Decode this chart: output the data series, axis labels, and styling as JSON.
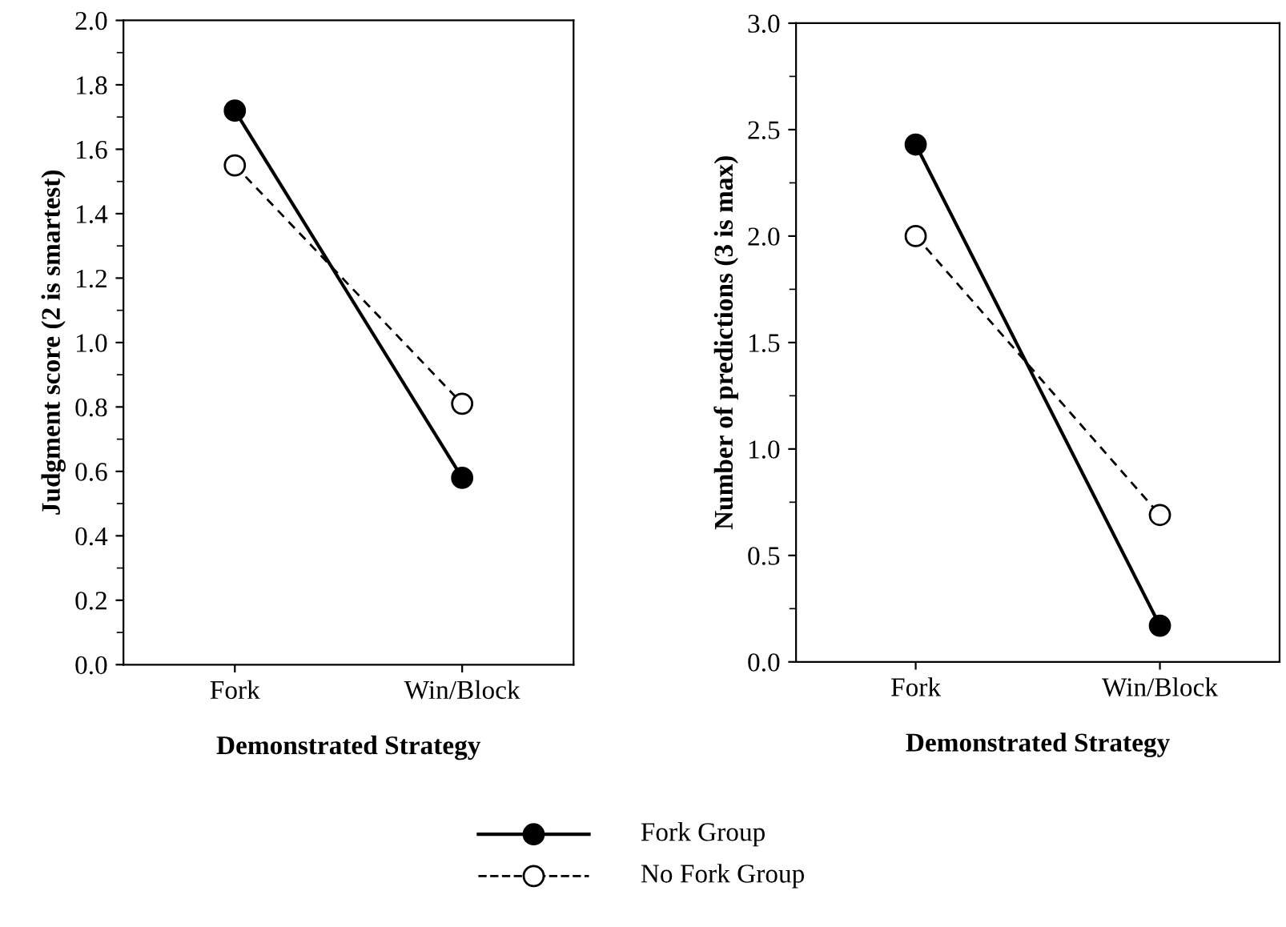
{
  "chart_data": [
    {
      "type": "line",
      "categories": [
        "Fork",
        "Win/Block"
      ],
      "xlabel": "Demonstrated Strategy",
      "ylabel": "Judgment score (2 is smartest)",
      "ylim": [
        0,
        2.0
      ],
      "yticks": [
        {
          "value": 0,
          "label": "0.0"
        },
        0.2,
        0.4,
        0.6,
        0.8,
        {
          "value": 1,
          "label": "1.0"
        },
        1.2,
        1.4,
        1.6,
        1.8,
        {
          "value": 2,
          "label": "2.0"
        }
      ],
      "legend": "bottom",
      "grid": false,
      "series": [
        {
          "name": "Fork Group",
          "color": "#000000",
          "values": [
            1.72,
            0.58
          ],
          "marker": "circle",
          "line_style": "solid"
        },
        {
          "name": "No Fork Group",
          "color": "#000000",
          "values": [
            1.55,
            0.81
          ],
          "marker": "circle",
          "line_style": "dashed"
        }
      ]
    },
    {
      "type": "line",
      "categories": [
        "Fork",
        "Win/Block"
      ],
      "xlabel": "Demonstrated Strategy",
      "ylabel": "Number of predictions (3 is max)",
      "ylim": [
        0,
        3.0
      ],
      "yticks": [
        {
          "value": 0,
          "label": "0.0"
        },
        0.5,
        {
          "value": 1,
          "label": "1.0"
        },
        1.5,
        {
          "value": 2,
          "label": "2.0"
        },
        2.5,
        {
          "value": 3,
          "label": "3.0"
        }
      ],
      "legend": "bottom",
      "grid": false,
      "series": [
        {
          "name": "Fork Group",
          "color": "#000000",
          "values": [
            2.43,
            0.17
          ],
          "marker": "circle",
          "line_style": "solid"
        },
        {
          "name": "No Fork Group",
          "color": "#000000",
          "values": [
            2.0,
            0.69
          ],
          "marker": "circle",
          "line_style": "dashed"
        }
      ]
    }
  ]
}
